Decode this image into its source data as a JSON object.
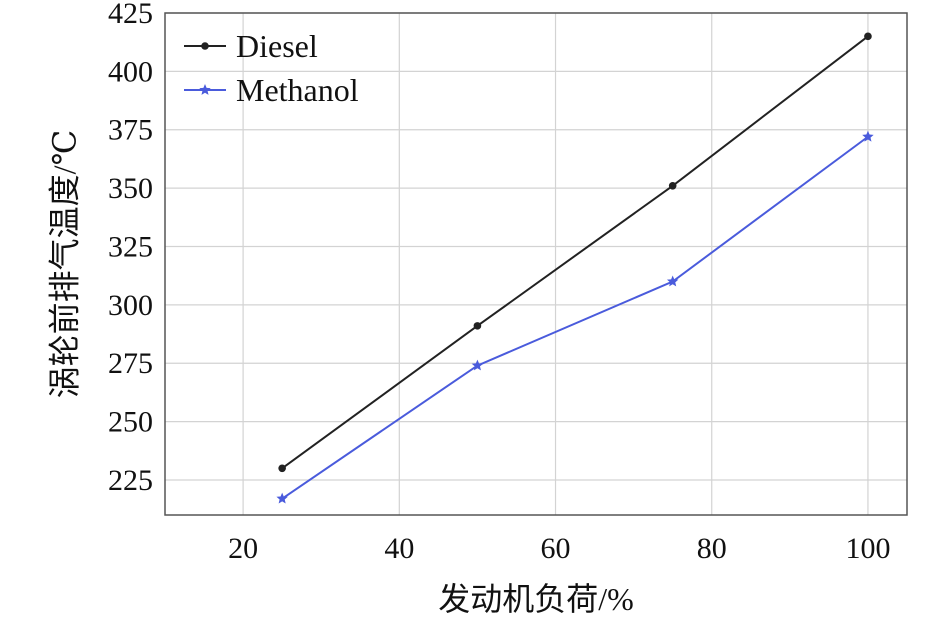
{
  "chart_data": {
    "type": "line",
    "xlabel": "发动机负荷/%",
    "ylabel": "涡轮前排气温度/℃",
    "xlim": [
      10,
      105
    ],
    "ylim": [
      210,
      425
    ],
    "xticks": [
      20,
      40,
      60,
      80,
      100
    ],
    "yticks": [
      225,
      250,
      275,
      300,
      325,
      350,
      375,
      400,
      425
    ],
    "grid": true,
    "legend_position": "top-left",
    "series": [
      {
        "name": "Diesel",
        "color": "#222222",
        "marker": "circle",
        "x": [
          25,
          50,
          75,
          100
        ],
        "y": [
          230,
          291,
          351,
          415
        ]
      },
      {
        "name": "Methanol",
        "color": "#4a5bdc",
        "marker": "star",
        "x": [
          25,
          50,
          75,
          100
        ],
        "y": [
          217,
          274,
          310,
          372
        ]
      }
    ]
  }
}
